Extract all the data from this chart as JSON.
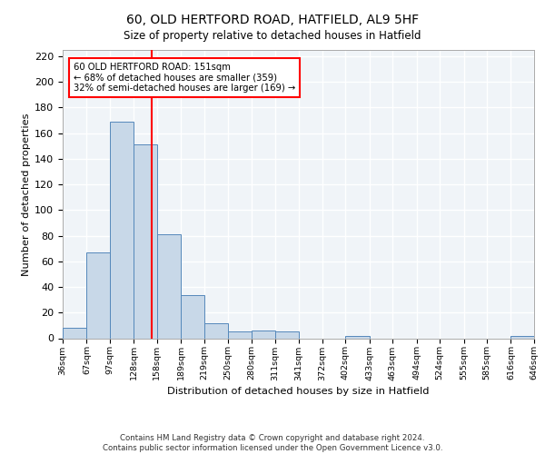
{
  "title_line1": "60, OLD HERTFORD ROAD, HATFIELD, AL9 5HF",
  "title_line2": "Size of property relative to detached houses in Hatfield",
  "xlabel": "Distribution of detached houses by size in Hatfield",
  "ylabel": "Number of detached properties",
  "bar_edges": [
    36,
    67,
    97,
    128,
    158,
    189,
    219,
    250,
    280,
    311,
    341,
    372,
    402,
    433,
    463,
    494,
    524,
    555,
    585,
    616,
    646
  ],
  "bar_heights": [
    8,
    67,
    169,
    151,
    81,
    34,
    12,
    5,
    6,
    5,
    0,
    0,
    2,
    0,
    0,
    0,
    0,
    0,
    0,
    2
  ],
  "bar_color": "#c8d8e8",
  "bar_edgecolor": "#5588bb",
  "vline_x": 151,
  "vline_color": "red",
  "annotation_text": "60 OLD HERTFORD ROAD: 151sqm\n← 68% of detached houses are smaller (359)\n32% of semi-detached houses are larger (169) →",
  "annotation_box_color": "white",
  "annotation_box_edgecolor": "red",
  "ylim": [
    0,
    225
  ],
  "yticks": [
    0,
    20,
    40,
    60,
    80,
    100,
    120,
    140,
    160,
    180,
    200,
    220
  ],
  "tick_labels": [
    "36sqm",
    "67sqm",
    "97sqm",
    "128sqm",
    "158sqm",
    "189sqm",
    "219sqm",
    "250sqm",
    "280sqm",
    "311sqm",
    "341sqm",
    "372sqm",
    "402sqm",
    "433sqm",
    "463sqm",
    "494sqm",
    "524sqm",
    "555sqm",
    "585sqm",
    "616sqm",
    "646sqm"
  ],
  "footer_text": "Contains HM Land Registry data © Crown copyright and database right 2024.\nContains public sector information licensed under the Open Government Licence v3.0.",
  "bg_color": "#f0f4f8",
  "grid_color": "white"
}
